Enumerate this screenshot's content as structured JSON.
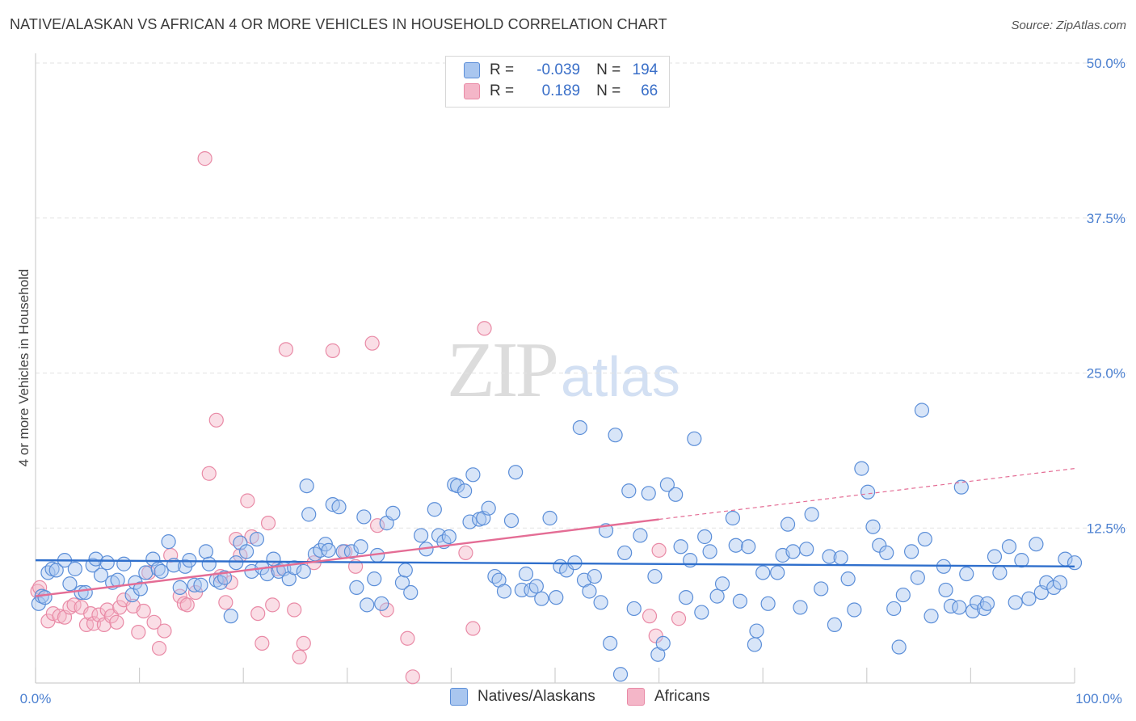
{
  "title": "NATIVE/ALASKAN VS AFRICAN 4 OR MORE VEHICLES IN HOUSEHOLD CORRELATION CHART",
  "source": "Source: ZipAtlas.com",
  "watermark": {
    "zip": "ZIP",
    "atlas": "atlas"
  },
  "legend": {
    "rows": [
      {
        "r_label": "R =",
        "r_value": "-0.039",
        "n_label": "N =",
        "n_value": "194",
        "color": "#a9c6ef"
      },
      {
        "r_label": "R =",
        "r_value": "0.189",
        "n_label": "N =",
        "n_value": "66",
        "color": "#f4b6c8"
      }
    ]
  },
  "bottom_legend": {
    "natives": "Natives/Alaskans",
    "africans": "Africans"
  },
  "colors": {
    "natives_fill": "#a9c6ef",
    "natives_stroke": "#5b8ed8",
    "natives_line": "#2f6fcc",
    "africans_fill": "#f4b6c8",
    "africans_stroke": "#e98aa6",
    "africans_line": "#e46d95",
    "tick_text": "#4a7fd0",
    "grid": "#e2e2e2"
  },
  "chart_data": {
    "type": "scatter",
    "title": "NATIVE/ALASKAN VS AFRICAN 4 OR MORE VEHICLES IN HOUSEHOLD CORRELATION CHART",
    "xlabel": "",
    "ylabel": "4 or more Vehicles in Household",
    "xlim": [
      0,
      100
    ],
    "ylim": [
      0,
      50
    ],
    "x_tick_labels": [
      "0.0%",
      "100.0%"
    ],
    "y_ticks": [
      12.5,
      25.0,
      37.5,
      50.0
    ],
    "y_tick_labels": [
      "12.5%",
      "25.0%",
      "37.5%",
      "50.0%"
    ],
    "grid": true,
    "series": [
      {
        "name": "Natives/Alaskans",
        "trend": {
          "x": [
            0,
            100
          ],
          "y": [
            9.9,
            9.4
          ]
        },
        "points": [
          [
            0.3,
            6.4
          ],
          [
            0.6,
            7.0
          ],
          [
            0.9,
            6.9
          ],
          [
            1.2,
            8.9
          ],
          [
            1.6,
            9.2
          ],
          [
            2.0,
            9.1
          ],
          [
            2.8,
            9.9
          ],
          [
            3.3,
            8.0
          ],
          [
            3.8,
            9.2
          ],
          [
            4.4,
            7.3
          ],
          [
            4.8,
            7.3
          ],
          [
            5.5,
            9.5
          ],
          [
            5.8,
            10.0
          ],
          [
            6.3,
            8.7
          ],
          [
            6.9,
            9.7
          ],
          [
            7.4,
            8.1
          ],
          [
            7.9,
            8.3
          ],
          [
            8.5,
            9.6
          ],
          [
            9.3,
            7.1
          ],
          [
            9.6,
            8.1
          ],
          [
            10.1,
            7.6
          ],
          [
            10.6,
            8.9
          ],
          [
            11.3,
            10.0
          ],
          [
            11.8,
            9.2
          ],
          [
            12.1,
            9.0
          ],
          [
            12.8,
            11.4
          ],
          [
            13.3,
            9.5
          ],
          [
            13.9,
            7.7
          ],
          [
            14.4,
            9.4
          ],
          [
            14.8,
            9.9
          ],
          [
            15.3,
            7.9
          ],
          [
            15.9,
            7.9
          ],
          [
            16.4,
            10.6
          ],
          [
            16.7,
            9.6
          ],
          [
            17.4,
            8.3
          ],
          [
            17.8,
            8.1
          ],
          [
            18.2,
            8.5
          ],
          [
            18.8,
            5.4
          ],
          [
            19.3,
            9.7
          ],
          [
            19.7,
            11.3
          ],
          [
            20.3,
            10.6
          ],
          [
            20.8,
            9.0
          ],
          [
            21.3,
            11.6
          ],
          [
            21.8,
            9.3
          ],
          [
            22.3,
            8.8
          ],
          [
            22.9,
            10.0
          ],
          [
            23.4,
            9.0
          ],
          [
            23.9,
            9.2
          ],
          [
            24.4,
            8.4
          ],
          [
            24.9,
            9.3
          ],
          [
            25.8,
            9.0
          ],
          [
            26.1,
            15.9
          ],
          [
            26.3,
            13.6
          ],
          [
            26.9,
            10.4
          ],
          [
            27.4,
            10.7
          ],
          [
            27.9,
            11.2
          ],
          [
            28.2,
            10.7
          ],
          [
            28.6,
            14.4
          ],
          [
            29.2,
            14.2
          ],
          [
            29.6,
            10.6
          ],
          [
            30.4,
            10.6
          ],
          [
            30.9,
            7.7
          ],
          [
            31.3,
            11.0
          ],
          [
            31.6,
            13.4
          ],
          [
            31.9,
            6.3
          ],
          [
            32.6,
            8.4
          ],
          [
            32.9,
            10.3
          ],
          [
            33.3,
            6.4
          ],
          [
            33.8,
            12.9
          ],
          [
            34.4,
            13.7
          ],
          [
            35.3,
            8.1
          ],
          [
            35.6,
            9.1
          ],
          [
            36.1,
            7.3
          ],
          [
            37.1,
            11.9
          ],
          [
            37.6,
            10.8
          ],
          [
            38.4,
            14.0
          ],
          [
            38.8,
            11.9
          ],
          [
            39.3,
            11.4
          ],
          [
            39.8,
            11.8
          ],
          [
            40.3,
            16.0
          ],
          [
            40.6,
            15.9
          ],
          [
            41.3,
            15.5
          ],
          [
            41.8,
            13.0
          ],
          [
            42.1,
            16.8
          ],
          [
            42.7,
            13.2
          ],
          [
            43.1,
            13.3
          ],
          [
            43.6,
            14.1
          ],
          [
            44.2,
            8.6
          ],
          [
            44.6,
            8.3
          ],
          [
            45.1,
            7.4
          ],
          [
            45.8,
            13.1
          ],
          [
            46.2,
            17.0
          ],
          [
            46.8,
            7.5
          ],
          [
            47.2,
            8.8
          ],
          [
            47.7,
            7.5
          ],
          [
            48.2,
            7.8
          ],
          [
            48.7,
            6.8
          ],
          [
            49.5,
            13.3
          ],
          [
            50.1,
            6.9
          ],
          [
            50.5,
            9.4
          ],
          [
            51.1,
            9.1
          ],
          [
            51.9,
            9.7
          ],
          [
            52.4,
            20.6
          ],
          [
            52.8,
            8.3
          ],
          [
            53.3,
            7.4
          ],
          [
            53.8,
            8.6
          ],
          [
            54.4,
            6.5
          ],
          [
            54.9,
            12.3
          ],
          [
            55.3,
            3.2
          ],
          [
            55.8,
            20.0
          ],
          [
            56.3,
            0.7
          ],
          [
            56.7,
            10.5
          ],
          [
            57.1,
            15.5
          ],
          [
            57.6,
            6.0
          ],
          [
            58.2,
            11.9
          ],
          [
            59.0,
            15.3
          ],
          [
            59.6,
            8.6
          ],
          [
            59.9,
            2.3
          ],
          [
            60.4,
            3.2
          ],
          [
            60.8,
            16.0
          ],
          [
            61.6,
            15.2
          ],
          [
            62.1,
            11.0
          ],
          [
            62.6,
            6.9
          ],
          [
            63.0,
            9.9
          ],
          [
            63.4,
            19.7
          ],
          [
            64.1,
            5.7
          ],
          [
            64.4,
            11.8
          ],
          [
            64.9,
            10.6
          ],
          [
            65.6,
            7.0
          ],
          [
            66.1,
            8.0
          ],
          [
            67.1,
            13.3
          ],
          [
            67.4,
            11.1
          ],
          [
            67.8,
            6.6
          ],
          [
            68.6,
            11.0
          ],
          [
            69.2,
            3.1
          ],
          [
            69.4,
            4.2
          ],
          [
            70.0,
            8.9
          ],
          [
            70.5,
            6.4
          ],
          [
            71.4,
            8.9
          ],
          [
            71.9,
            10.3
          ],
          [
            72.4,
            12.8
          ],
          [
            72.9,
            10.6
          ],
          [
            73.6,
            6.1
          ],
          [
            74.2,
            10.8
          ],
          [
            74.7,
            13.6
          ],
          [
            75.6,
            7.6
          ],
          [
            76.4,
            10.2
          ],
          [
            76.9,
            4.7
          ],
          [
            77.5,
            10.1
          ],
          [
            78.2,
            8.4
          ],
          [
            78.8,
            5.9
          ],
          [
            79.5,
            17.3
          ],
          [
            80.1,
            15.4
          ],
          [
            80.6,
            12.6
          ],
          [
            81.2,
            11.1
          ],
          [
            81.9,
            10.5
          ],
          [
            82.6,
            6.0
          ],
          [
            83.1,
            2.9
          ],
          [
            83.5,
            7.1
          ],
          [
            84.3,
            10.6
          ],
          [
            84.9,
            8.5
          ],
          [
            85.3,
            22.0
          ],
          [
            85.6,
            11.6
          ],
          [
            86.2,
            5.4
          ],
          [
            87.4,
            9.4
          ],
          [
            87.6,
            7.5
          ],
          [
            88.1,
            6.2
          ],
          [
            88.9,
            6.1
          ],
          [
            89.1,
            15.8
          ],
          [
            89.6,
            8.8
          ],
          [
            90.2,
            5.8
          ],
          [
            90.6,
            6.5
          ],
          [
            91.3,
            6.0
          ],
          [
            91.6,
            6.4
          ],
          [
            92.3,
            10.2
          ],
          [
            92.8,
            8.9
          ],
          [
            93.7,
            11.0
          ],
          [
            94.3,
            6.5
          ],
          [
            94.9,
            9.9
          ],
          [
            95.6,
            6.8
          ],
          [
            96.3,
            11.2
          ],
          [
            96.8,
            7.3
          ],
          [
            97.3,
            8.1
          ],
          [
            98.0,
            7.7
          ],
          [
            98.6,
            8.1
          ],
          [
            99.1,
            10.0
          ],
          [
            100.0,
            9.7
          ]
        ]
      },
      {
        "name": "Africans",
        "trend": {
          "x": [
            0,
            60
          ],
          "y": [
            7.0,
            13.2
          ]
        },
        "trend_extension": {
          "x": [
            60,
            100
          ],
          "y": [
            13.2,
            17.3
          ]
        },
        "points": [
          [
            0.2,
            7.4
          ],
          [
            0.4,
            7.7
          ],
          [
            1.2,
            5.0
          ],
          [
            1.7,
            5.6
          ],
          [
            2.3,
            5.4
          ],
          [
            2.8,
            5.3
          ],
          [
            3.3,
            6.1
          ],
          [
            3.7,
            6.3
          ],
          [
            4.4,
            6.1
          ],
          [
            4.9,
            4.7
          ],
          [
            5.3,
            5.6
          ],
          [
            5.6,
            4.8
          ],
          [
            6.1,
            5.5
          ],
          [
            6.6,
            4.7
          ],
          [
            6.9,
            5.9
          ],
          [
            7.3,
            5.4
          ],
          [
            7.8,
            4.9
          ],
          [
            8.1,
            6.1
          ],
          [
            8.5,
            6.7
          ],
          [
            9.4,
            6.2
          ],
          [
            9.9,
            4.1
          ],
          [
            10.4,
            5.8
          ],
          [
            10.9,
            8.9
          ],
          [
            11.4,
            4.9
          ],
          [
            11.9,
            2.8
          ],
          [
            12.4,
            4.2
          ],
          [
            13.0,
            10.3
          ],
          [
            13.9,
            7.0
          ],
          [
            14.3,
            6.4
          ],
          [
            14.6,
            6.3
          ],
          [
            15.4,
            7.3
          ],
          [
            16.3,
            42.3
          ],
          [
            16.7,
            16.9
          ],
          [
            17.4,
            21.2
          ],
          [
            17.8,
            8.6
          ],
          [
            18.3,
            6.5
          ],
          [
            18.8,
            8.1
          ],
          [
            19.3,
            11.6
          ],
          [
            19.7,
            10.3
          ],
          [
            20.4,
            14.7
          ],
          [
            20.8,
            11.8
          ],
          [
            21.4,
            5.6
          ],
          [
            21.8,
            3.2
          ],
          [
            22.4,
            12.9
          ],
          [
            22.8,
            6.3
          ],
          [
            23.3,
            9.2
          ],
          [
            24.1,
            26.9
          ],
          [
            24.9,
            5.9
          ],
          [
            25.4,
            2.1
          ],
          [
            25.8,
            3.2
          ],
          [
            26.8,
            9.7
          ],
          [
            28.6,
            26.8
          ],
          [
            29.8,
            10.6
          ],
          [
            30.8,
            9.4
          ],
          [
            32.4,
            27.4
          ],
          [
            32.9,
            12.7
          ],
          [
            33.8,
            5.9
          ],
          [
            35.8,
            3.6
          ],
          [
            36.3,
            0.5
          ],
          [
            41.4,
            10.5
          ],
          [
            42.1,
            4.4
          ],
          [
            43.2,
            28.6
          ],
          [
            59.1,
            5.4
          ],
          [
            59.7,
            3.8
          ],
          [
            60.0,
            10.7
          ],
          [
            61.9,
            5.2
          ]
        ]
      }
    ]
  }
}
